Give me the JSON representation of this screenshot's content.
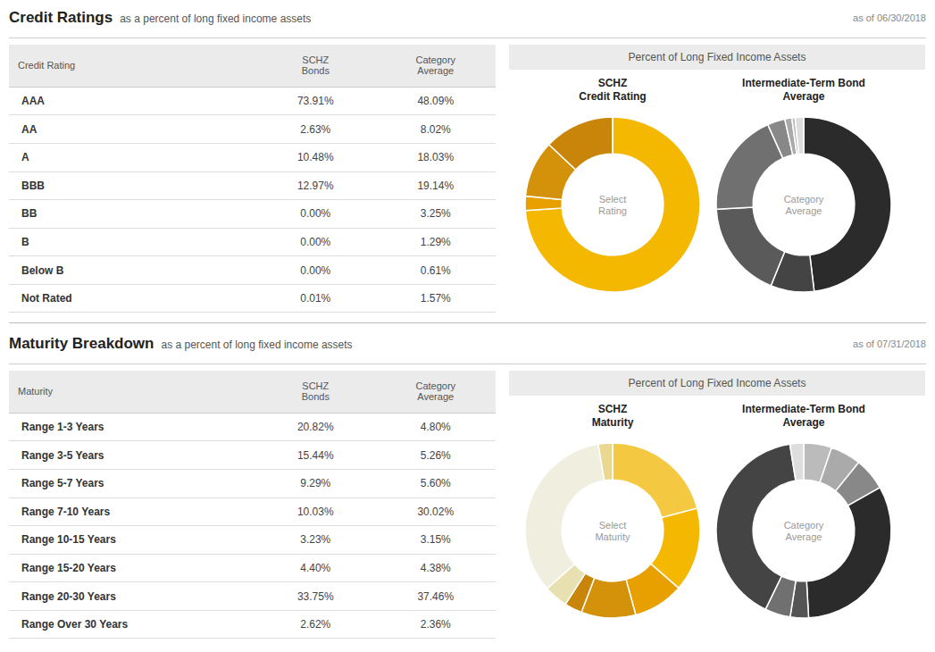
{
  "chart_data": [
    {
      "type": "table",
      "title": "Credit Ratings",
      "subtitle": "as a percent of long fixed income assets",
      "annotations": [
        "as of 06/30/2018",
        "Percent of Long Fixed Income Assets"
      ],
      "columns": [
        "Credit Rating",
        "SCHZ\nBonds",
        "Category\nAverage"
      ],
      "rows": [
        [
          "AAA",
          "73.91%",
          "48.09%"
        ],
        [
          "AA",
          "2.63%",
          "8.02%"
        ],
        [
          "A",
          "10.48%",
          "18.03%"
        ],
        [
          "BBB",
          "12.97%",
          "19.14%"
        ],
        [
          "BB",
          "0.00%",
          "3.25%"
        ],
        [
          "B",
          "0.00%",
          "1.29%"
        ],
        [
          "Below B",
          "0.00%",
          "0.61%"
        ],
        [
          "Not Rated",
          "0.01%",
          "1.57%"
        ]
      ]
    },
    {
      "type": "donut",
      "title": "SCHZ\nCredit Rating",
      "annotations": [
        "Select\nRating"
      ],
      "values": [
        73.91,
        2.63,
        10.48,
        12.97,
        0.01
      ],
      "colors": [
        "#F5B800",
        "#E8A000",
        "#D4920A",
        "#C8850A",
        "#F0F0F0"
      ]
    },
    {
      "type": "donut",
      "title": "Intermediate-Term Bond\nAverage",
      "annotations": [
        "Category\nAverage"
      ],
      "values": [
        48.09,
        8.02,
        18.03,
        19.14,
        3.25,
        1.29,
        0.61,
        1.57
      ],
      "colors": [
        "#2B2B2B",
        "#444444",
        "#5A5A5A",
        "#707070",
        "#888888",
        "#AAAAAA",
        "#BBBBBB",
        "#DDDDDD"
      ]
    },
    {
      "type": "table",
      "title": "Maturity Breakdown",
      "subtitle": "as a percent of long fixed income assets",
      "annotations": [
        "as of 07/31/2018",
        "Percent of Long Fixed Income Assets"
      ],
      "columns": [
        "Maturity",
        "SCHZ\nBonds",
        "Category\nAverage"
      ],
      "rows": [
        [
          "Range 1-3 Years",
          "20.82%",
          "4.80%"
        ],
        [
          "Range 3-5 Years",
          "15.44%",
          "5.26%"
        ],
        [
          "Range 5-7 Years",
          "9.29%",
          "5.60%"
        ],
        [
          "Range 7-10 Years",
          "10.03%",
          "30.02%"
        ],
        [
          "Range 10-15 Years",
          "3.23%",
          "3.15%"
        ],
        [
          "Range 15-20 Years",
          "4.40%",
          "4.38%"
        ],
        [
          "Range 20-30 Years",
          "33.75%",
          "37.46%"
        ],
        [
          "Range Over 30 Years",
          "2.62%",
          "2.36%"
        ]
      ]
    },
    {
      "type": "donut",
      "title": "SCHZ\nMaturity",
      "annotations": [
        "Select\nMaturity"
      ],
      "values": [
        20.82,
        15.44,
        9.29,
        10.03,
        3.23,
        4.4,
        33.75,
        2.62
      ],
      "colors": [
        "#F5C842",
        "#F5B800",
        "#E8A000",
        "#D4920A",
        "#C8850A",
        "#E8E0B0",
        "#F0EFDF",
        "#EAD890"
      ]
    },
    {
      "type": "donut",
      "title": "Intermediate-Term Bond\nAverage",
      "annotations": [
        "Category\nAverage"
      ],
      "values": [
        4.8,
        5.26,
        5.6,
        30.02,
        3.15,
        4.38,
        37.46,
        2.36
      ],
      "colors": [
        "#BBBBBB",
        "#AAAAAA",
        "#888888",
        "#2B2B2B",
        "#555555",
        "#707070",
        "#444444",
        "#DDDDDD"
      ]
    }
  ]
}
